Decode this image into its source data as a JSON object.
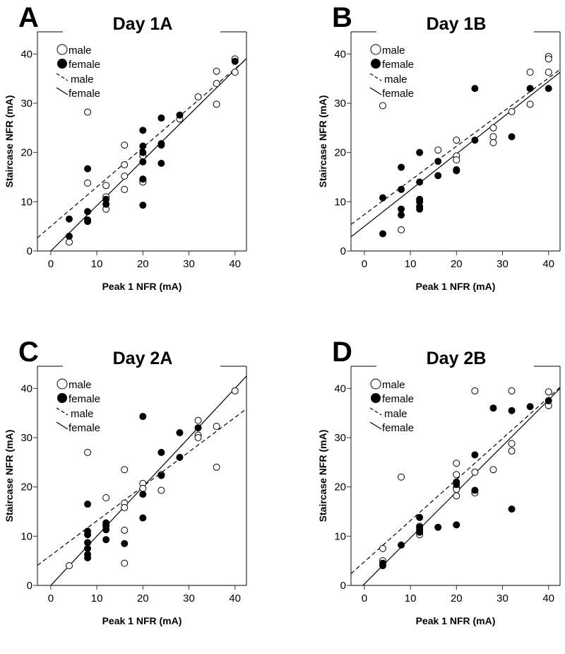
{
  "chart_data": [
    {
      "type": "scatter",
      "panel_label": "A",
      "title": "Day 1A",
      "xlabel": "Peak 1 NFR (mA)",
      "ylabel": "Staircase NFR (mA)",
      "xlim": [
        -2.9,
        42.5
      ],
      "ylim": [
        0,
        44.5
      ],
      "xticks": [
        0,
        10,
        20,
        30,
        40
      ],
      "yticks": [
        0,
        10,
        20,
        30,
        40
      ],
      "legend": {
        "placement": "top-left",
        "entries": [
          "male",
          "female",
          "male",
          "female"
        ]
      },
      "series": [
        {
          "name": "male",
          "marker": "open-circle",
          "points": [
            [
              4,
              1.8
            ],
            [
              8,
              28.2
            ],
            [
              8,
              13.8
            ],
            [
              12,
              13.3
            ],
            [
              12,
              11
            ],
            [
              12,
              8.5
            ],
            [
              16,
              21.5
            ],
            [
              16,
              17.5
            ],
            [
              16,
              15.2
            ],
            [
              16,
              12.5
            ],
            [
              20,
              19.3
            ],
            [
              20,
              14.3
            ],
            [
              20,
              14
            ],
            [
              28,
              26.8
            ],
            [
              32,
              31.3
            ],
            [
              36,
              36.5
            ],
            [
              36,
              34
            ],
            [
              36,
              29.8
            ],
            [
              40,
              39
            ],
            [
              40,
              36.3
            ]
          ]
        },
        {
          "name": "female",
          "marker": "filled-circle",
          "points": [
            [
              4,
              6.5
            ],
            [
              4,
              3
            ],
            [
              8,
              16.7
            ],
            [
              8,
              8
            ],
            [
              8,
              6.3
            ],
            [
              8,
              6
            ],
            [
              12,
              10.5
            ],
            [
              12,
              9.5
            ],
            [
              20,
              24.5
            ],
            [
              20,
              21.3
            ],
            [
              20,
              20
            ],
            [
              20,
              18.1
            ],
            [
              20,
              14.6
            ],
            [
              20,
              9.3
            ],
            [
              24,
              27
            ],
            [
              24,
              21.8
            ],
            [
              24,
              21.5
            ],
            [
              24,
              17.8
            ],
            [
              28,
              27.6
            ],
            [
              40,
              38.5
            ]
          ]
        }
      ],
      "fits": [
        {
          "name": "male",
          "style": "dashed",
          "slope": 0.8,
          "intercept": 5.0
        },
        {
          "name": "female",
          "style": "solid",
          "slope": 0.92,
          "intercept": 0.0
        }
      ]
    },
    {
      "type": "scatter",
      "panel_label": "B",
      "title": "Day 1B",
      "xlabel": "Peak 1 NFR (mA)",
      "ylabel": "Staircase NFR (mA)",
      "xlim": [
        -2.9,
        42.5
      ],
      "ylim": [
        0,
        44.5
      ],
      "xticks": [
        0,
        10,
        20,
        30,
        40
      ],
      "yticks": [
        0,
        10,
        20,
        30,
        40
      ],
      "legend": {
        "placement": "top-left",
        "entries": [
          "male",
          "female",
          "male",
          "female"
        ]
      },
      "series": [
        {
          "name": "male",
          "marker": "open-circle",
          "points": [
            [
              4,
              29.5
            ],
            [
              8,
              4.3
            ],
            [
              16,
              20.5
            ],
            [
              20,
              22.5
            ],
            [
              20,
              19.3
            ],
            [
              20,
              18.5
            ],
            [
              28,
              25
            ],
            [
              28,
              23.2
            ],
            [
              28,
              22
            ],
            [
              32,
              28.3
            ],
            [
              36,
              36.3
            ],
            [
              36,
              29.8
            ],
            [
              40,
              39.5
            ],
            [
              40,
              39
            ],
            [
              40,
              36.3
            ]
          ]
        },
        {
          "name": "female",
          "marker": "filled-circle",
          "points": [
            [
              4,
              10.8
            ],
            [
              4,
              3.5
            ],
            [
              8,
              17
            ],
            [
              8,
              12.5
            ],
            [
              8,
              8.5
            ],
            [
              8,
              7.3
            ],
            [
              12,
              20
            ],
            [
              12,
              14
            ],
            [
              12,
              10.5
            ],
            [
              12,
              10
            ],
            [
              12,
              9
            ],
            [
              12,
              8.5
            ],
            [
              16,
              18.2
            ],
            [
              16,
              15.3
            ],
            [
              20,
              16.5
            ],
            [
              20,
              16.3
            ],
            [
              24,
              33
            ],
            [
              24,
              22.5
            ],
            [
              32,
              23.2
            ],
            [
              36,
              33
            ],
            [
              40,
              33
            ]
          ]
        }
      ],
      "fits": [
        {
          "name": "male",
          "style": "dashed",
          "slope": 0.693,
          "intercept": 7.4
        },
        {
          "name": "female",
          "style": "solid",
          "slope": 0.736,
          "intercept": 5.0
        }
      ]
    },
    {
      "type": "scatter",
      "panel_label": "C",
      "title": "Day 2A",
      "xlabel": "Peak 1 NFR (mA)",
      "ylabel": "Staircase NFR (mA)",
      "xlim": [
        -2.9,
        42.5
      ],
      "ylim": [
        0,
        44.5
      ],
      "xticks": [
        0,
        10,
        20,
        30,
        40
      ],
      "yticks": [
        0,
        10,
        20,
        30,
        40
      ],
      "legend": {
        "placement": "top-left",
        "entries": [
          "male",
          "female",
          "male",
          "female"
        ]
      },
      "series": [
        {
          "name": "male",
          "marker": "open-circle",
          "points": [
            [
              4,
              4
            ],
            [
              8,
              27
            ],
            [
              12,
              17.8
            ],
            [
              12,
              12
            ],
            [
              16,
              23.5
            ],
            [
              16,
              16.7
            ],
            [
              16,
              15.8
            ],
            [
              16,
              11.2
            ],
            [
              16,
              4.5
            ],
            [
              20,
              20.7
            ],
            [
              20,
              19.7
            ],
            [
              24,
              22.5
            ],
            [
              24,
              19.3
            ],
            [
              32,
              33.5
            ],
            [
              32,
              30.5
            ],
            [
              32,
              30
            ],
            [
              36,
              32.3
            ],
            [
              36,
              24
            ],
            [
              40,
              39.5
            ]
          ]
        },
        {
          "name": "female",
          "marker": "filled-circle",
          "points": [
            [
              8,
              16.5
            ],
            [
              8,
              11
            ],
            [
              8,
              10.3
            ],
            [
              8,
              8.7
            ],
            [
              8,
              7.5
            ],
            [
              8,
              6.3
            ],
            [
              8,
              5.6
            ],
            [
              12,
              12.7
            ],
            [
              12,
              12.3
            ],
            [
              12,
              11.3
            ],
            [
              12,
              9.3
            ],
            [
              16,
              8.5
            ],
            [
              20,
              34.3
            ],
            [
              20,
              18.5
            ],
            [
              20,
              13.7
            ],
            [
              24,
              27
            ],
            [
              24,
              22.3
            ],
            [
              28,
              31
            ],
            [
              28,
              26
            ],
            [
              32,
              32
            ]
          ]
        }
      ],
      "fits": [
        {
          "name": "male",
          "style": "dashed",
          "slope": 0.7,
          "intercept": 6.1
        },
        {
          "name": "female",
          "style": "solid",
          "slope": 1.0,
          "intercept": 0.0
        }
      ]
    },
    {
      "type": "scatter",
      "panel_label": "D",
      "title": "Day 2B",
      "xlabel": "Peak 1 NFR (mA)",
      "ylabel": "Staircase NFR (mA)",
      "xlim": [
        -2.9,
        42.5
      ],
      "ylim": [
        0,
        44.5
      ],
      "xticks": [
        0,
        10,
        20,
        30,
        40
      ],
      "yticks": [
        0,
        10,
        20,
        30,
        40
      ],
      "legend": {
        "placement": "top-left",
        "entries": [
          "male",
          "female",
          "male",
          "female"
        ]
      },
      "series": [
        {
          "name": "male",
          "marker": "open-circle",
          "points": [
            [
              4,
              7.5
            ],
            [
              4,
              5
            ],
            [
              8,
              22
            ],
            [
              12,
              12
            ],
            [
              12,
              10.3
            ],
            [
              20,
              24.8
            ],
            [
              20,
              22.5
            ],
            [
              20,
              19.8
            ],
            [
              20,
              19.5
            ],
            [
              20,
              18.2
            ],
            [
              24,
              39.5
            ],
            [
              24,
              23
            ],
            [
              24,
              18.8
            ],
            [
              28,
              23.5
            ],
            [
              32,
              39.5
            ],
            [
              32,
              28.8
            ],
            [
              32,
              27.3
            ],
            [
              40,
              39.3
            ],
            [
              40,
              36.5
            ]
          ]
        },
        {
          "name": "female",
          "marker": "filled-circle",
          "points": [
            [
              4,
              4.5
            ],
            [
              4,
              4
            ],
            [
              8,
              8.2
            ],
            [
              12,
              13.8
            ],
            [
              12,
              11.8
            ],
            [
              12,
              11.3
            ],
            [
              12,
              10.8
            ],
            [
              16,
              11.8
            ],
            [
              20,
              21
            ],
            [
              20,
              20.5
            ],
            [
              20,
              12.3
            ],
            [
              24,
              26.5
            ],
            [
              24,
              19.3
            ],
            [
              28,
              36
            ],
            [
              32,
              35.5
            ],
            [
              32,
              15.5
            ],
            [
              36,
              36.3
            ],
            [
              40,
              37.5
            ]
          ]
        }
      ],
      "fits": [
        {
          "name": "male",
          "style": "dashed",
          "slope": 0.834,
          "intercept": 4.8
        },
        {
          "name": "female",
          "style": "solid",
          "slope": 0.934,
          "intercept": 0.3
        }
      ]
    }
  ]
}
